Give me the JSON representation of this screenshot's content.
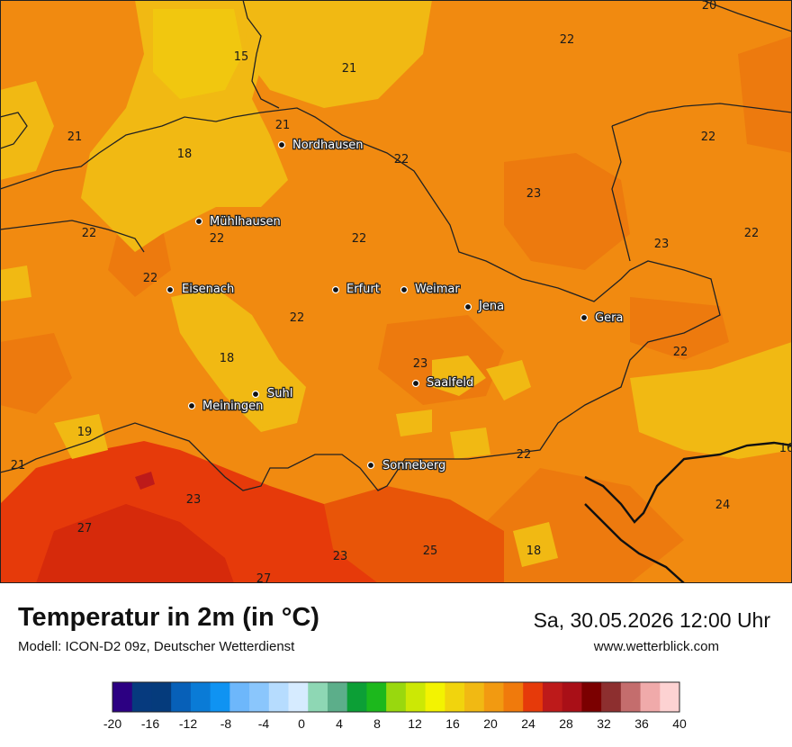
{
  "header": {
    "title": "Temperatur in 2m (in °C)",
    "model": "Modell: ICON-D2 09z, Deutscher Wetterdienst",
    "datetime": "Sa, 30.05.2026 12:00 Uhr",
    "website": "www.wetterblick.com"
  },
  "map": {
    "cities": [
      {
        "name": "Nordhausen"
      },
      {
        "name": "Mühlhausen"
      },
      {
        "name": "Eisenach"
      },
      {
        "name": "Erfurt"
      },
      {
        "name": "Weimar"
      },
      {
        "name": "Jena"
      },
      {
        "name": "Gera"
      },
      {
        "name": "Saalfeld"
      },
      {
        "name": "Suhl"
      },
      {
        "name": "Meiningen"
      },
      {
        "name": "Sonneberg"
      }
    ],
    "temperature_labels": [
      "20",
      "22",
      "15",
      "21",
      "21",
      "22",
      "21",
      "18",
      "22",
      "23",
      "22",
      "22",
      "22",
      "23",
      "22",
      "22",
      "22",
      "18",
      "23",
      "19",
      "22",
      "21",
      "16",
      "23",
      "24",
      "27",
      "23",
      "25",
      "18",
      "27"
    ]
  },
  "legend": {
    "ticks": [
      "-20",
      "-16",
      "-12",
      "-8",
      "-4",
      "0",
      "4",
      "8",
      "12",
      "16",
      "20",
      "24",
      "28",
      "32",
      "36",
      "40"
    ],
    "colors": [
      "#2c0082",
      "#063a7e",
      "#053b7c",
      "#0760b8",
      "#0a7bd6",
      "#0f93f2",
      "#6db7fb",
      "#8ac6fc",
      "#b6dcfe",
      "#d6ebff",
      "#8ed7b4",
      "#5cae8a",
      "#0c9f36",
      "#1cb81c",
      "#99d80e",
      "#cce805",
      "#f3f301",
      "#f1d40d",
      "#f1b913",
      "#f29a11",
      "#f07a0c",
      "#e63a0a",
      "#bd1a1a",
      "#a90f17",
      "#7b0000",
      "#8d2f2f",
      "#c46d6d",
      "#f0aaaa",
      "#fdd2d2"
    ]
  }
}
